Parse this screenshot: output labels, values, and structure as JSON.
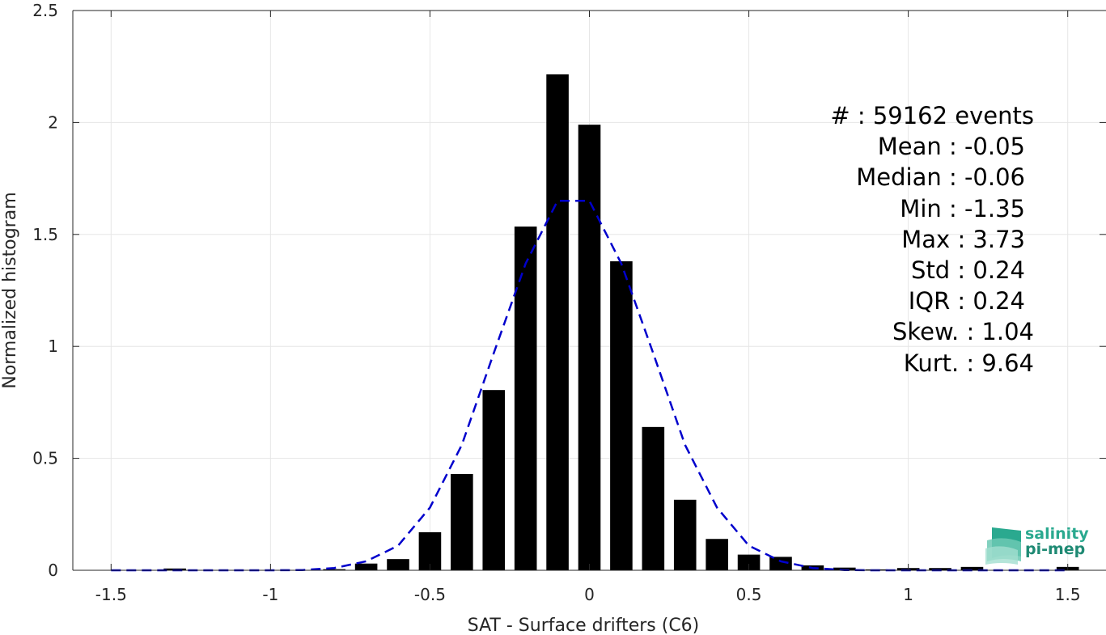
{
  "chart_data": {
    "type": "bar",
    "xlabel": "SAT - Surface drifters (C6)",
    "ylabel": "Normalized histogram",
    "xlim": [
      -1.62,
      1.62
    ],
    "ylim": [
      0,
      2.5
    ],
    "xticks": [
      -1.5,
      -1,
      -0.5,
      0,
      0.5,
      1,
      1.5
    ],
    "xtick_labels": [
      "-1.5",
      "-1",
      "-0.5",
      "0",
      "0.5",
      "1",
      "1.5"
    ],
    "yticks": [
      0,
      0.5,
      1,
      1.5,
      2,
      2.5
    ],
    "ytick_labels": [
      "0",
      "0.5",
      "1",
      "1.5",
      "2",
      "2.5"
    ],
    "grid": true,
    "bar_width": 0.07,
    "bar_color": "#000000",
    "bars": {
      "x": [
        -1.3,
        -0.8,
        -0.7,
        -0.6,
        -0.5,
        -0.4,
        -0.3,
        -0.2,
        -0.1,
        0.0,
        0.1,
        0.2,
        0.3,
        0.4,
        0.5,
        0.6,
        0.7,
        0.8,
        0.9,
        1.0,
        1.1,
        1.2,
        1.5
      ],
      "values": [
        0.008,
        0.005,
        0.03,
        0.05,
        0.17,
        0.43,
        0.805,
        1.535,
        2.215,
        1.99,
        1.38,
        0.64,
        0.315,
        0.14,
        0.07,
        0.06,
        0.022,
        0.012,
        0.004,
        0.01,
        0.01,
        0.015,
        0.015
      ]
    },
    "fit_curve": {
      "style": "dashed",
      "color": "#0000cc",
      "x": [
        -1.5,
        -1.4,
        -1.3,
        -1.2,
        -1.1,
        -1.0,
        -0.9,
        -0.8,
        -0.7,
        -0.6,
        -0.5,
        -0.4,
        -0.3,
        -0.2,
        -0.1,
        0.0,
        0.1,
        0.2,
        0.3,
        0.4,
        0.5,
        0.6,
        0.7,
        0.8,
        0.9,
        1.0,
        1.1,
        1.2,
        1.3,
        1.4,
        1.5
      ],
      "values": [
        0,
        0,
        0,
        0,
        0,
        0,
        0.001,
        0.01,
        0.04,
        0.11,
        0.28,
        0.56,
        0.97,
        1.37,
        1.65,
        1.65,
        1.37,
        0.97,
        0.56,
        0.28,
        0.11,
        0.04,
        0.01,
        0.001,
        0,
        0,
        0,
        0,
        0,
        0,
        0
      ]
    },
    "annotations": [
      "#  : 59162 events",
      "Mean : -0.05",
      "Median : -0.06",
      "Min : -1.35",
      "Max : 3.73",
      "Std : 0.24",
      "IQR : 0.24",
      "Skew. : 1.04",
      "Kurt. : 9.64"
    ]
  },
  "logo": {
    "line1": "salinity",
    "line2": "pi-mep",
    "color": "#2aa98f"
  }
}
